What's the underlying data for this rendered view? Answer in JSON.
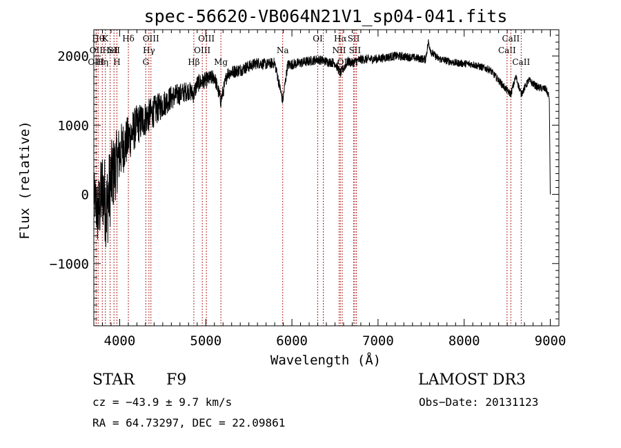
{
  "chart_data": {
    "type": "line",
    "title": "spec-56620-VB064N21V1_sp04-041.fits",
    "xlabel": "Wavelength (Å)",
    "ylabel": "Flux (relative)",
    "xlim": [
      3700,
      9100
    ],
    "ylim": [
      -1900,
      2380
    ],
    "x_ticks": [
      4000,
      5000,
      6000,
      7000,
      8000,
      9000
    ],
    "x_tick_labels": [
      "4000",
      "5000",
      "6000",
      "7000",
      "8000",
      "9000"
    ],
    "y_ticks": [
      -1000,
      0,
      1000,
      2000
    ],
    "y_tick_labels": [
      "−1000",
      "0",
      "1000",
      "2000"
    ],
    "series": [
      {
        "name": "spectrum",
        "x": [
          3700,
          3750,
          3800,
          3850,
          3900,
          3950,
          4000,
          4050,
          4100,
          4200,
          4300,
          4400,
          4500,
          4600,
          4700,
          4800,
          4861,
          4900,
          5000,
          5100,
          5175,
          5250,
          5400,
          5500,
          5600,
          5700,
          5800,
          5893,
          5950,
          6100,
          6300,
          6400,
          6500,
          6563,
          6650,
          6700,
          6800,
          7000,
          7200,
          7400,
          7550,
          7585,
          7620,
          7700,
          7900,
          8100,
          8300,
          8498,
          8542,
          8600,
          8662,
          8750,
          8850,
          8950,
          8990,
          9000
        ],
        "y": [
          0,
          -300,
          100,
          -200,
          200,
          400,
          600,
          700,
          800,
          1000,
          1100,
          1200,
          1300,
          1400,
          1450,
          1500,
          1450,
          1600,
          1650,
          1700,
          1350,
          1750,
          1800,
          1850,
          1900,
          1880,
          1900,
          1350,
          1870,
          1900,
          1950,
          1920,
          1900,
          1750,
          1920,
          1900,
          1950,
          1960,
          2000,
          1980,
          1950,
          2200,
          2050,
          1960,
          1900,
          1880,
          1800,
          1500,
          1450,
          1700,
          1450,
          1650,
          1550,
          1520,
          1400,
          0
        ],
        "noise": [
          330,
          520,
          600,
          650,
          580,
          500,
          420,
          380,
          340,
          300,
          260,
          230,
          200,
          180,
          160,
          140,
          140,
          130,
          120,
          110,
          110,
          100,
          95,
          90,
          85,
          80,
          80,
          80,
          80,
          75,
          70,
          70,
          70,
          70,
          70,
          70,
          70,
          65,
          65,
          60,
          60,
          60,
          60,
          55,
          55,
          55,
          55,
          55,
          55,
          55,
          55,
          55,
          55,
          55,
          55,
          0
        ]
      }
    ],
    "lines": [
      {
        "wl": 3750,
        "label": "Hθ",
        "row": 0
      },
      {
        "wl": 3727,
        "label": "OII",
        "row": 1
      },
      {
        "wl": 3727,
        "label": "OIII",
        "row": 2
      },
      {
        "wl": 3798,
        "label": "Hη",
        "row": 2
      },
      {
        "wl": 3834,
        "label": "K",
        "row": 0
      },
      {
        "wl": 3889,
        "label": "HeI",
        "row": 1
      },
      {
        "wl": 3934,
        "label": "SII",
        "row": 1
      },
      {
        "wl": 3968,
        "label": "H",
        "row": 2
      },
      {
        "wl": 4101,
        "label": "Hδ",
        "row": 0
      },
      {
        "wl": 4303,
        "label": "G",
        "row": 2
      },
      {
        "wl": 4340,
        "label": "Hγ",
        "row": 1
      },
      {
        "wl": 4363,
        "label": "OIII",
        "row": 0
      },
      {
        "wl": 4861,
        "label": "Hβ",
        "row": 2
      },
      {
        "wl": 4959,
        "label": "OIII",
        "row": 1
      },
      {
        "wl": 5007,
        "label": "OIII",
        "row": 0
      },
      {
        "wl": 5175,
        "label": "Mg",
        "row": 2
      },
      {
        "wl": 5893,
        "label": "Na",
        "row": 1
      },
      {
        "wl": 6300,
        "label": "OI",
        "row": 0
      },
      {
        "wl": 6364,
        "label": "",
        "row": 0
      },
      {
        "wl": 6548,
        "label": "NII",
        "row": 1
      },
      {
        "wl": 6563,
        "label": "Hα",
        "row": 0
      },
      {
        "wl": 6584,
        "label": "OI",
        "row": 2
      },
      {
        "wl": 6717,
        "label": "SII",
        "row": 0
      },
      {
        "wl": 6731,
        "label": "SII",
        "row": 1
      },
      {
        "wl": 6750,
        "label": "I",
        "row": 2
      },
      {
        "wl": 8498,
        "label": "CaII",
        "row": 1
      },
      {
        "wl": 8542,
        "label": "CaII",
        "row": 0
      },
      {
        "wl": 8662,
        "label": "CaII",
        "row": 2
      }
    ]
  },
  "footer": {
    "object_type": "STAR",
    "subclass": "F9",
    "survey": "LAMOST DR3",
    "cz": "cz = −43.9 ± 9.7 km/s",
    "obs_date": "Obs−Date: 20131123",
    "coords": "RA =  64.73297, DEC =  22.09861"
  }
}
